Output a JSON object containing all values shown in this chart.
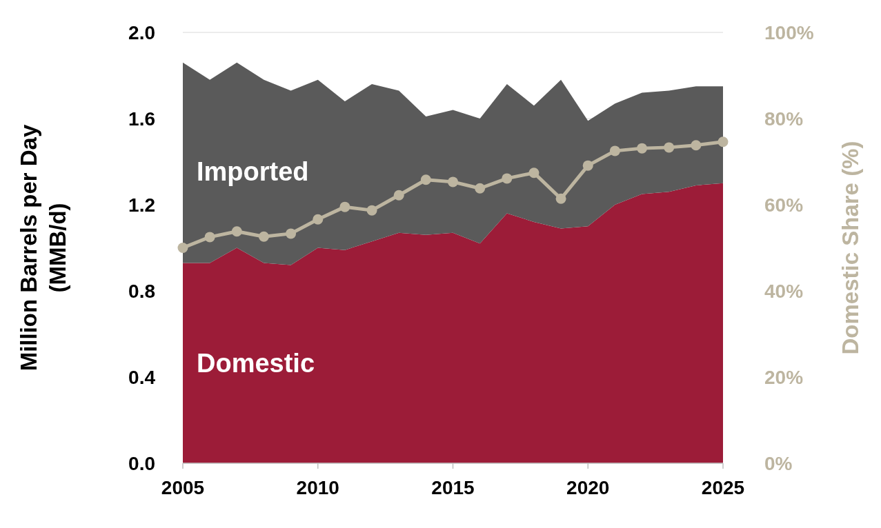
{
  "chart_data": {
    "type": "area",
    "stacked": true,
    "ylabel": "Million Barrels per Day\n(MMB/d)",
    "y2label": "Domestic Share (%)",
    "x": [
      2005,
      2006,
      2007,
      2008,
      2009,
      2010,
      2011,
      2012,
      2013,
      2014,
      2015,
      2016,
      2017,
      2018,
      2019,
      2020,
      2021,
      2022,
      2023,
      2024,
      2025
    ],
    "xlim": [
      2005,
      2025
    ],
    "xticks": [
      2005,
      2010,
      2015,
      2020,
      2025
    ],
    "ylim": [
      0,
      2
    ],
    "yticks": [
      {
        "value": 0,
        "label": "0.0"
      },
      {
        "value": 0.4,
        "label": "0.4"
      },
      {
        "value": 0.8,
        "label": "0.8"
      },
      {
        "value": 1.2,
        "label": "1.2"
      },
      {
        "value": 1.6,
        "label": "1.6"
      },
      {
        "value": 2,
        "label": "2.0"
      }
    ],
    "y2lim": [
      0,
      100
    ],
    "y2ticks": [
      {
        "value": 0,
        "label": "0%"
      },
      {
        "value": 20,
        "label": "20%"
      },
      {
        "value": 40,
        "label": "40%"
      },
      {
        "value": 60,
        "label": "60%"
      },
      {
        "value": 80,
        "label": "80%"
      },
      {
        "value": 100,
        "label": "100%"
      }
    ],
    "grid": "y",
    "series": [
      {
        "name": "Domestic",
        "color": "#9c1c38",
        "values": [
          0.93,
          0.93,
          1.0,
          0.93,
          0.92,
          1.0,
          0.99,
          1.03,
          1.07,
          1.06,
          1.07,
          1.02,
          1.16,
          1.12,
          1.09,
          1.1,
          1.2,
          1.25,
          1.26,
          1.29,
          1.3
        ]
      },
      {
        "name": "Imported",
        "color": "#5a5a5a",
        "values": [
          0.93,
          0.85,
          0.86,
          0.85,
          0.81,
          0.78,
          0.69,
          0.73,
          0.66,
          0.55,
          0.57,
          0.58,
          0.6,
          0.54,
          0.69,
          0.49,
          0.47,
          0.47,
          0.47,
          0.46,
          0.45
        ]
      },
      {
        "type": "line",
        "axis": "y2",
        "color": "#bdb5a0",
        "marker": "circle",
        "values": [
          50,
          52.5,
          53.8,
          52.6,
          53.3,
          56.6,
          59.5,
          58.7,
          62.2,
          65.8,
          65.3,
          63.8,
          66.1,
          67.4,
          61.4,
          69.1,
          72.5,
          73.1,
          73.3,
          73.8,
          74.6
        ]
      }
    ]
  }
}
